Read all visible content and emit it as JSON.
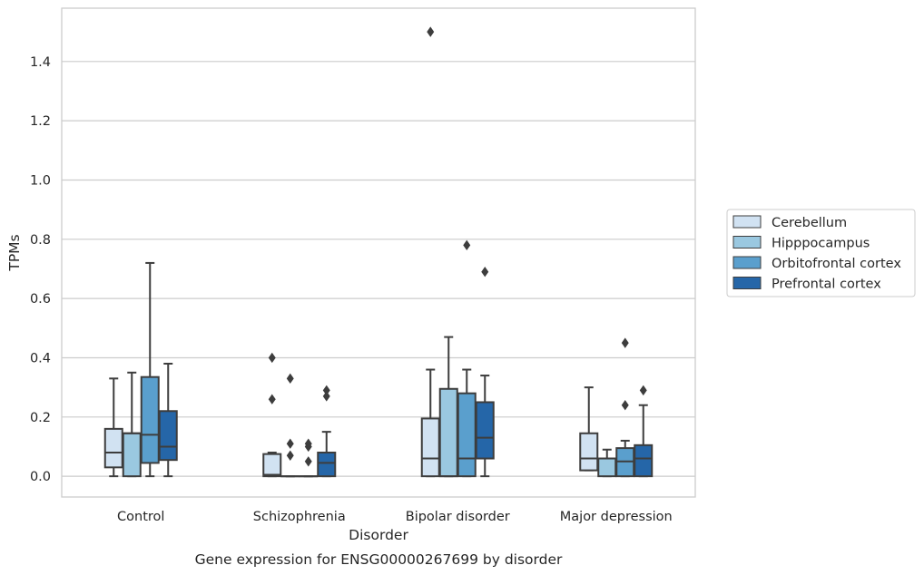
{
  "caption": "Gene expression for ENSG00000267699 by disorder",
  "chart_data": {
    "type": "box",
    "title": "",
    "xlabel": "Disorder",
    "ylabel": "TPMs",
    "ylim": [
      -0.07,
      1.58
    ],
    "yticks": [
      0.0,
      0.2,
      0.4,
      0.6,
      0.8,
      1.0,
      1.2,
      1.4
    ],
    "ytick_labels": [
      "0.0",
      "0.2",
      "0.4",
      "0.6",
      "0.8",
      "1.0",
      "1.2",
      "1.4"
    ],
    "grid": "horizontal",
    "legend_position": "right",
    "categories": [
      "Control",
      "Schizophrenia",
      "Bipolar disorder",
      "Major depression"
    ],
    "series": [
      {
        "name": "Cerebellum",
        "color": "#d1e2f2",
        "boxes": [
          {
            "whislo": 0.0,
            "q1": 0.03,
            "med": 0.08,
            "q3": 0.16,
            "whishi": 0.33,
            "fliers": []
          },
          {
            "whislo": 0.0,
            "q1": 0.0,
            "med": 0.005,
            "q3": 0.075,
            "whishi": 0.08,
            "fliers": [
              0.26,
              0.4
            ]
          },
          {
            "whislo": 0.0,
            "q1": 0.0,
            "med": 0.06,
            "q3": 0.195,
            "whishi": 0.36,
            "fliers": [
              1.5
            ]
          },
          {
            "whislo": 0.02,
            "q1": 0.02,
            "med": 0.06,
            "q3": 0.145,
            "whishi": 0.3,
            "fliers": []
          }
        ]
      },
      {
        "name": "Hipppocampus",
        "color": "#9ac8e0",
        "boxes": [
          {
            "whislo": 0.0,
            "q1": 0.0,
            "med": 0.145,
            "q3": 0.145,
            "whishi": 0.35,
            "fliers": []
          },
          {
            "whislo": 0.0,
            "q1": 0.0,
            "med": 0.0,
            "q3": 0.0,
            "whishi": 0.0,
            "fliers": [
              0.07,
              0.11,
              0.33
            ]
          },
          {
            "whislo": 0.0,
            "q1": 0.0,
            "med": 0.0,
            "q3": 0.295,
            "whishi": 0.47,
            "fliers": []
          },
          {
            "whislo": 0.0,
            "q1": 0.0,
            "med": 0.06,
            "q3": 0.06,
            "whishi": 0.09,
            "fliers": []
          }
        ]
      },
      {
        "name": "Orbitofrontal cortex",
        "color": "#5a9fcd",
        "boxes": [
          {
            "whislo": 0.0,
            "q1": 0.045,
            "med": 0.14,
            "q3": 0.335,
            "whishi": 0.72,
            "fliers": []
          },
          {
            "whislo": 0.0,
            "q1": 0.0,
            "med": 0.0,
            "q3": 0.0,
            "whishi": 0.0,
            "fliers": [
              0.05,
              0.1,
              0.11
            ]
          },
          {
            "whislo": 0.0,
            "q1": 0.0,
            "med": 0.06,
            "q3": 0.28,
            "whishi": 0.36,
            "fliers": [
              0.78
            ]
          },
          {
            "whislo": 0.0,
            "q1": 0.0,
            "med": 0.05,
            "q3": 0.095,
            "whishi": 0.12,
            "fliers": [
              0.24,
              0.45
            ]
          }
        ]
      },
      {
        "name": "Prefrontal cortex",
        "color": "#2566a8",
        "boxes": [
          {
            "whislo": 0.0,
            "q1": 0.055,
            "med": 0.1,
            "q3": 0.22,
            "whishi": 0.38,
            "fliers": []
          },
          {
            "whislo": 0.0,
            "q1": 0.0,
            "med": 0.045,
            "q3": 0.08,
            "whishi": 0.15,
            "fliers": [
              0.27,
              0.29
            ]
          },
          {
            "whislo": 0.0,
            "q1": 0.06,
            "med": 0.13,
            "q3": 0.25,
            "whishi": 0.34,
            "fliers": [
              0.69
            ]
          },
          {
            "whislo": 0.0,
            "q1": 0.0,
            "med": 0.06,
            "q3": 0.105,
            "whishi": 0.24,
            "fliers": [
              0.29
            ]
          }
        ]
      }
    ]
  }
}
